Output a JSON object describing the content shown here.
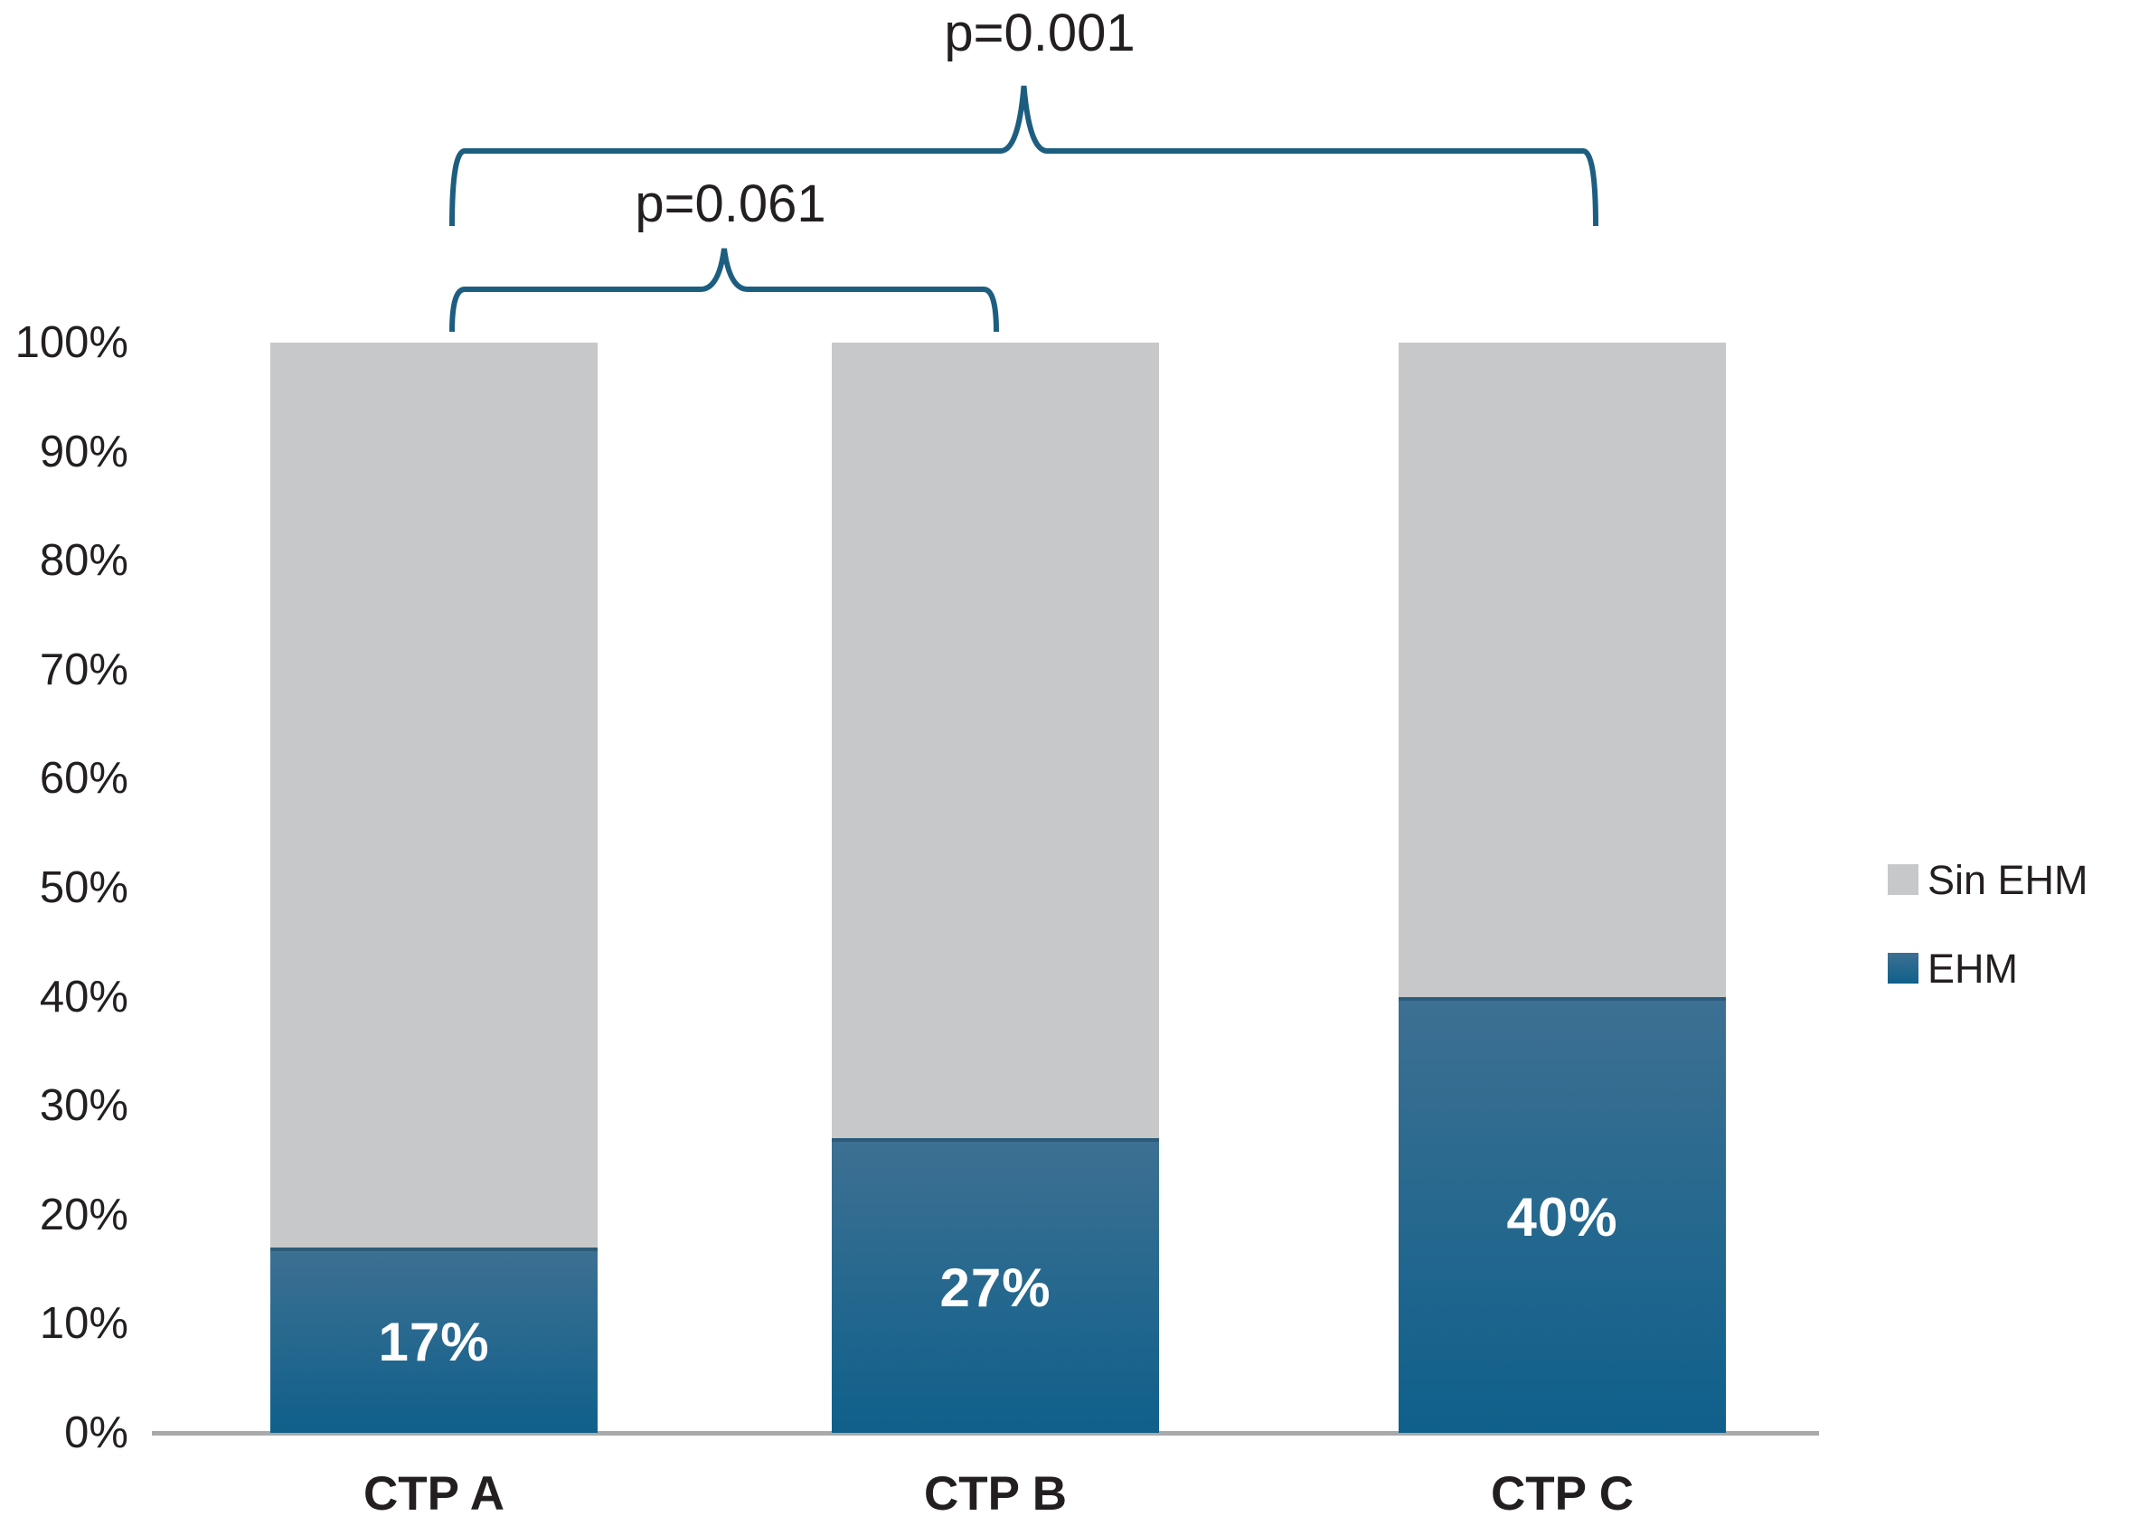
{
  "chart_data": {
    "type": "bar",
    "stacked": true,
    "percent_scale": true,
    "title": "",
    "xlabel": "",
    "ylabel": "",
    "categories": [
      "CTP A",
      "CTP B",
      "CTP C"
    ],
    "series": [
      {
        "name": "EHM",
        "values": [
          17,
          27,
          40
        ]
      },
      {
        "name": "Sin EHM",
        "values": [
          83,
          73,
          60
        ]
      }
    ],
    "bar_labels": [
      "17%",
      "27%",
      "40%"
    ],
    "ylim": [
      0,
      100
    ],
    "yticks": [
      "0%",
      "10%",
      "20%",
      "30%",
      "40%",
      "50%",
      "60%",
      "70%",
      "80%",
      "90%",
      "100%"
    ],
    "grid": false,
    "legend_position": "right",
    "legend": [
      {
        "label": "Sin EHM",
        "series": "Sin EHM"
      },
      {
        "label": "EHM",
        "series": "EHM"
      }
    ],
    "annotations": [
      {
        "label": "p=0.001",
        "from": "CTP A",
        "to": "CTP C"
      },
      {
        "label": "p=0.061",
        "from": "CTP A",
        "to": "CTP B"
      }
    ]
  },
  "colors": {
    "ehm_top": "#3d7092",
    "ehm_bottom": "#0f608b",
    "ehm_edge": "#2c5c7b",
    "sin_ehm": "#c7c8ca",
    "axis_line": "#a7a9ab",
    "text": "#231f20",
    "brace": "#1d5e80",
    "bar_label": "#ffffff"
  }
}
